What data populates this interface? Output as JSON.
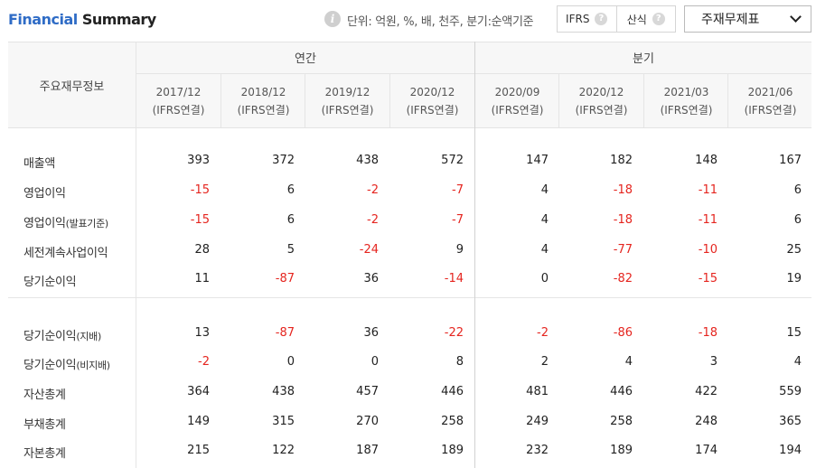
{
  "title": {
    "part1": "Financial",
    "part2": "Summary"
  },
  "info_icon_glyph": "i",
  "unit_text": "단위: 억원, %, 배, 천주, 분기:순액기준",
  "toggle": {
    "ifrs_label": "IFRS",
    "calc_label": "산식",
    "help_glyph": "?"
  },
  "dropdown": {
    "label": "주재무제표"
  },
  "table": {
    "row_header": "주요재무정보",
    "groups": {
      "annual": "연간",
      "quarterly": "분기"
    },
    "columns": [
      {
        "period": "2017/12",
        "basis": "(IFRS연결)"
      },
      {
        "period": "2018/12",
        "basis": "(IFRS연결)"
      },
      {
        "period": "2019/12",
        "basis": "(IFRS연결)"
      },
      {
        "period": "2020/12",
        "basis": "(IFRS연결)"
      },
      {
        "period": "2020/09",
        "basis": "(IFRS연결)"
      },
      {
        "period": "2020/12",
        "basis": "(IFRS연결)"
      },
      {
        "period": "2021/03",
        "basis": "(IFRS연결)"
      },
      {
        "period": "2021/06",
        "basis": "(IFRS연결)"
      }
    ],
    "rows": [
      {
        "label": "매출액",
        "sub": "",
        "values": [
          "393",
          "372",
          "438",
          "572",
          "147",
          "182",
          "148",
          "167"
        ]
      },
      {
        "label": "영업이익",
        "sub": "",
        "values": [
          "-15",
          "6",
          "-2",
          "-7",
          "4",
          "-18",
          "-11",
          "6"
        ]
      },
      {
        "label": "영업이익",
        "sub": "(발표기준)",
        "values": [
          "-15",
          "6",
          "-2",
          "-7",
          "4",
          "-18",
          "-11",
          "6"
        ]
      },
      {
        "label": "세전계속사업이익",
        "sub": "",
        "values": [
          "28",
          "5",
          "-24",
          "9",
          "4",
          "-77",
          "-10",
          "25"
        ]
      },
      {
        "label": "당기순이익",
        "sub": "",
        "values": [
          "11",
          "-87",
          "36",
          "-14",
          "0",
          "-82",
          "-15",
          "19"
        ]
      },
      {
        "label": "당기순이익",
        "sub": "(지배)",
        "values": [
          "13",
          "-87",
          "36",
          "-22",
          "-2",
          "-86",
          "-18",
          "15"
        ]
      },
      {
        "label": "당기순이익",
        "sub": "(비지배)",
        "values": [
          "-2",
          "0",
          "0",
          "8",
          "2",
          "4",
          "3",
          "4"
        ]
      },
      {
        "label": "자산총계",
        "sub": "",
        "values": [
          "364",
          "438",
          "457",
          "446",
          "481",
          "446",
          "422",
          "559"
        ]
      },
      {
        "label": "부채총계",
        "sub": "",
        "values": [
          "149",
          "315",
          "270",
          "258",
          "249",
          "258",
          "248",
          "365"
        ]
      },
      {
        "label": "자본총계",
        "sub": "",
        "values": [
          "215",
          "122",
          "187",
          "189",
          "232",
          "189",
          "174",
          "194"
        ]
      }
    ],
    "negative_color": "#e5251f",
    "accent_color": "#2f6cc6"
  }
}
